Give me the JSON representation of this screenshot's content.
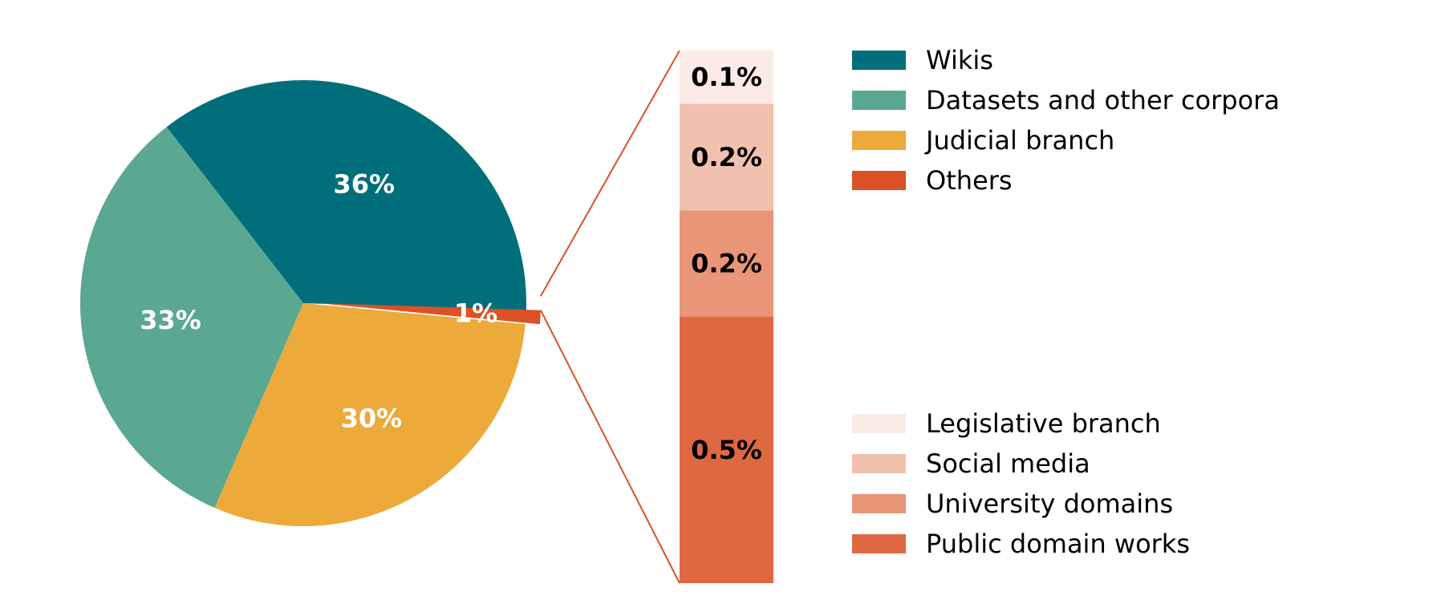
{
  "chart_data": {
    "type": "pie",
    "pie": {
      "slices": [
        {
          "name": "Wikis",
          "value": 36,
          "label": "36%",
          "color": "#006f7b"
        },
        {
          "name": "Datasets and other corpora",
          "value": 33,
          "label": "33%",
          "color": "#5ba892"
        },
        {
          "name": "Judicial branch",
          "value": 30,
          "label": "30%",
          "color": "#ebaa3a"
        },
        {
          "name": "Others",
          "value": 1,
          "label": "1%",
          "color": "#dc5126"
        }
      ]
    },
    "breakdown": {
      "type": "stacked-bar",
      "parent": "Others",
      "segments": [
        {
          "name": "Public domain works",
          "value": 0.5,
          "label": "0.5%",
          "color": "#de6842"
        },
        {
          "name": "University domains",
          "value": 0.2,
          "label": "0.2%",
          "color": "#e99577"
        },
        {
          "name": "Social media",
          "value": 0.2,
          "label": "0.2%",
          "color": "#f0c1ae"
        },
        {
          "name": "Legislative branch",
          "value": 0.1,
          "label": "0.1%",
          "color": "#fbebe6"
        }
      ]
    },
    "legends": {
      "main": [
        "Wikis",
        "Datasets and other corpora",
        "Judicial branch",
        "Others"
      ],
      "breakdown": [
        "Legislative branch",
        "Social media",
        "University domains",
        "Public domain works"
      ]
    },
    "connector_color": "#dc5126"
  }
}
